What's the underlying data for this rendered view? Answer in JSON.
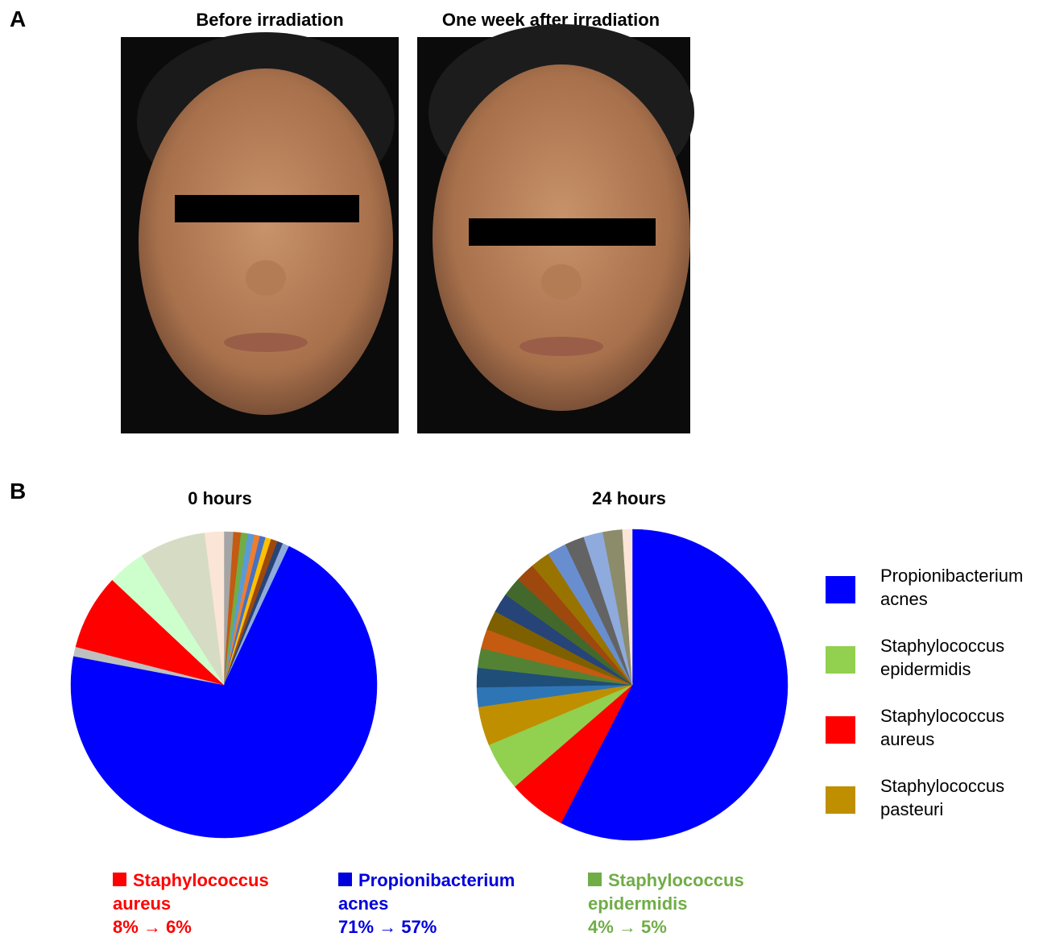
{
  "panel_a": {
    "label": "A",
    "photos": [
      {
        "title": "Before irradiation"
      },
      {
        "title": "One week after irradiation"
      }
    ]
  },
  "panel_b": {
    "label": "B"
  },
  "chart_data": [
    {
      "type": "pie",
      "title": "0 hours",
      "values": [
        1,
        0.8,
        0.7,
        0.7,
        0.6,
        0.6,
        0.6,
        0.7,
        0.6,
        0.7,
        71,
        1,
        8,
        4,
        7,
        2
      ],
      "colors": [
        "#a5a5a5",
        "#c55a11",
        "#70ad47",
        "#5b9bd5",
        "#ed7d31",
        "#4472c4",
        "#ffc000",
        "#9e480e",
        "#264478",
        "#8faadc",
        "#0000ff",
        "#bfbfbf",
        "#ff0000",
        "#ccffcc",
        "#d6dcc4",
        "#fbe5d6"
      ]
    },
    {
      "type": "pie",
      "title": "24 hours",
      "values": [
        57,
        6,
        5,
        4,
        2,
        2,
        2,
        2,
        2,
        2,
        2,
        2,
        2,
        2,
        2,
        2,
        2,
        1
      ],
      "colors": [
        "#0000ff",
        "#ff0000",
        "#92d050",
        "#bf8f00",
        "#2e75b6",
        "#1f4e79",
        "#548235",
        "#c55a11",
        "#7f6000",
        "#264478",
        "#43682b",
        "#9e480e",
        "#997300",
        "#698ed0",
        "#636363",
        "#8faadc",
        "#8c8c6b",
        "#fbe5d6"
      ]
    }
  ],
  "legend": [
    {
      "name": "Propionibacterium acnes",
      "color": "#0000ff"
    },
    {
      "name": "Staphylococcus epidermidis",
      "color": "#92d050"
    },
    {
      "name": "Staphylococcus aureus",
      "color": "#ff0000"
    },
    {
      "name": "Staphylococcus pasteuri",
      "color": "#bf8f00"
    }
  ],
  "summaries": [
    {
      "name": "Staphylococcus aureus",
      "change": "8% → 6%",
      "color": "#ff0000"
    },
    {
      "name": "Propionibacterium acnes",
      "change": "71% → 57%",
      "color": "#0000dd"
    },
    {
      "name": "Staphylococcus epidermidis",
      "change": "4% → 5%",
      "color": "#70ad47"
    }
  ]
}
